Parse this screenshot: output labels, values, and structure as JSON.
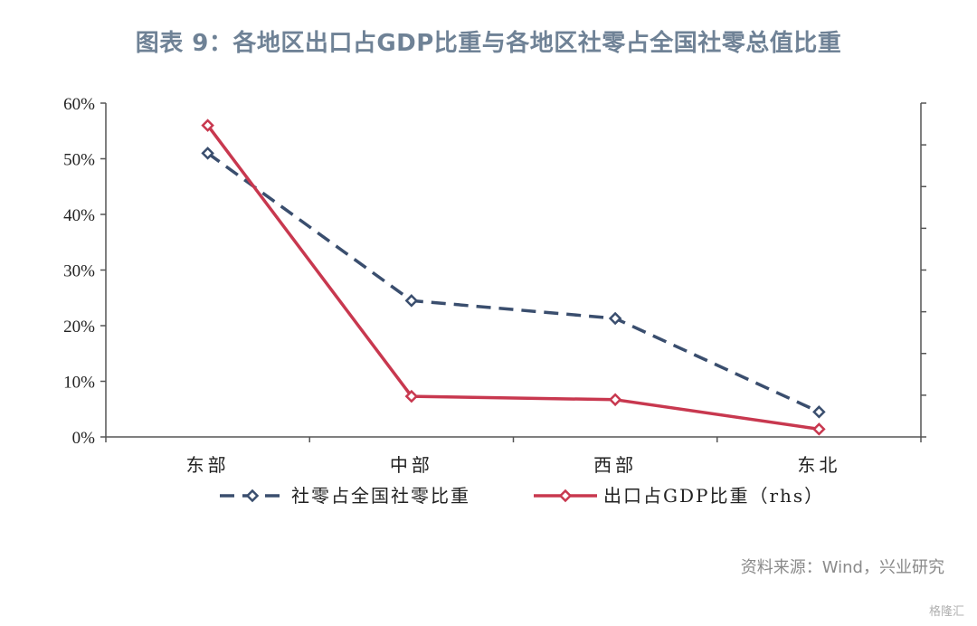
{
  "title": "图表 9：各地区出口占GDP比重与各地区社零占全国社零总值比重",
  "source": "资料来源：Wind，兴业研究",
  "watermark": "格隆汇",
  "chart_data": {
    "type": "line",
    "categories": [
      "东部",
      "中部",
      "西部",
      "东北"
    ],
    "ylim": [
      0,
      0.6
    ],
    "yticks": [
      "0%",
      "10%",
      "20%",
      "30%",
      "40%",
      "50%",
      "60%"
    ],
    "right_axis": {
      "ticks_count": 8,
      "labels_shown": false
    },
    "series": [
      {
        "name": "社零占全国社零比重",
        "axis": "left",
        "style": "dashed",
        "color": "#3a4e6e",
        "values": [
          0.51,
          0.245,
          0.213,
          0.045
        ]
      },
      {
        "name": "出口占GDP比重（rhs）",
        "axis": "right",
        "style": "solid",
        "color": "#c8384f",
        "values": [
          0.56,
          0.073,
          0.067,
          0.014
        ]
      }
    ],
    "legend_position": "bottom"
  }
}
